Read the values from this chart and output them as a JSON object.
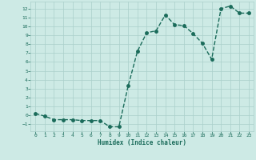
{
  "x": [
    0,
    1,
    2,
    3,
    4,
    5,
    6,
    7,
    8,
    9,
    10,
    11,
    12,
    13,
    14,
    15,
    16,
    17,
    18,
    19,
    20,
    21,
    22,
    23
  ],
  "y": [
    0.2,
    -0.1,
    -0.5,
    -0.5,
    -0.5,
    -0.6,
    -0.6,
    -0.6,
    -1.3,
    -1.3,
    3.3,
    7.2,
    9.3,
    9.5,
    11.3,
    10.2,
    10.1,
    9.2,
    8.1,
    6.3,
    12.0,
    12.3,
    11.5,
    11.5
  ],
  "xlabel": "Humidex (Indice chaleur)",
  "xlim": [
    -0.5,
    23.5
  ],
  "ylim": [
    -1.8,
    12.8
  ],
  "yticks": [
    -1,
    0,
    1,
    2,
    3,
    4,
    5,
    6,
    7,
    8,
    9,
    10,
    11,
    12
  ],
  "xticks": [
    0,
    1,
    2,
    3,
    4,
    5,
    6,
    7,
    8,
    9,
    10,
    11,
    12,
    13,
    14,
    15,
    16,
    17,
    18,
    19,
    20,
    21,
    22,
    23
  ],
  "line_color": "#1a6b5a",
  "marker_color": "#1a6b5a",
  "bg_color": "#cdeae5",
  "grid_color": "#aacfca",
  "xlabel_color": "#1a6b5a",
  "tick_color": "#1a6b5a",
  "line_width": 1.0,
  "marker_size": 2.5
}
